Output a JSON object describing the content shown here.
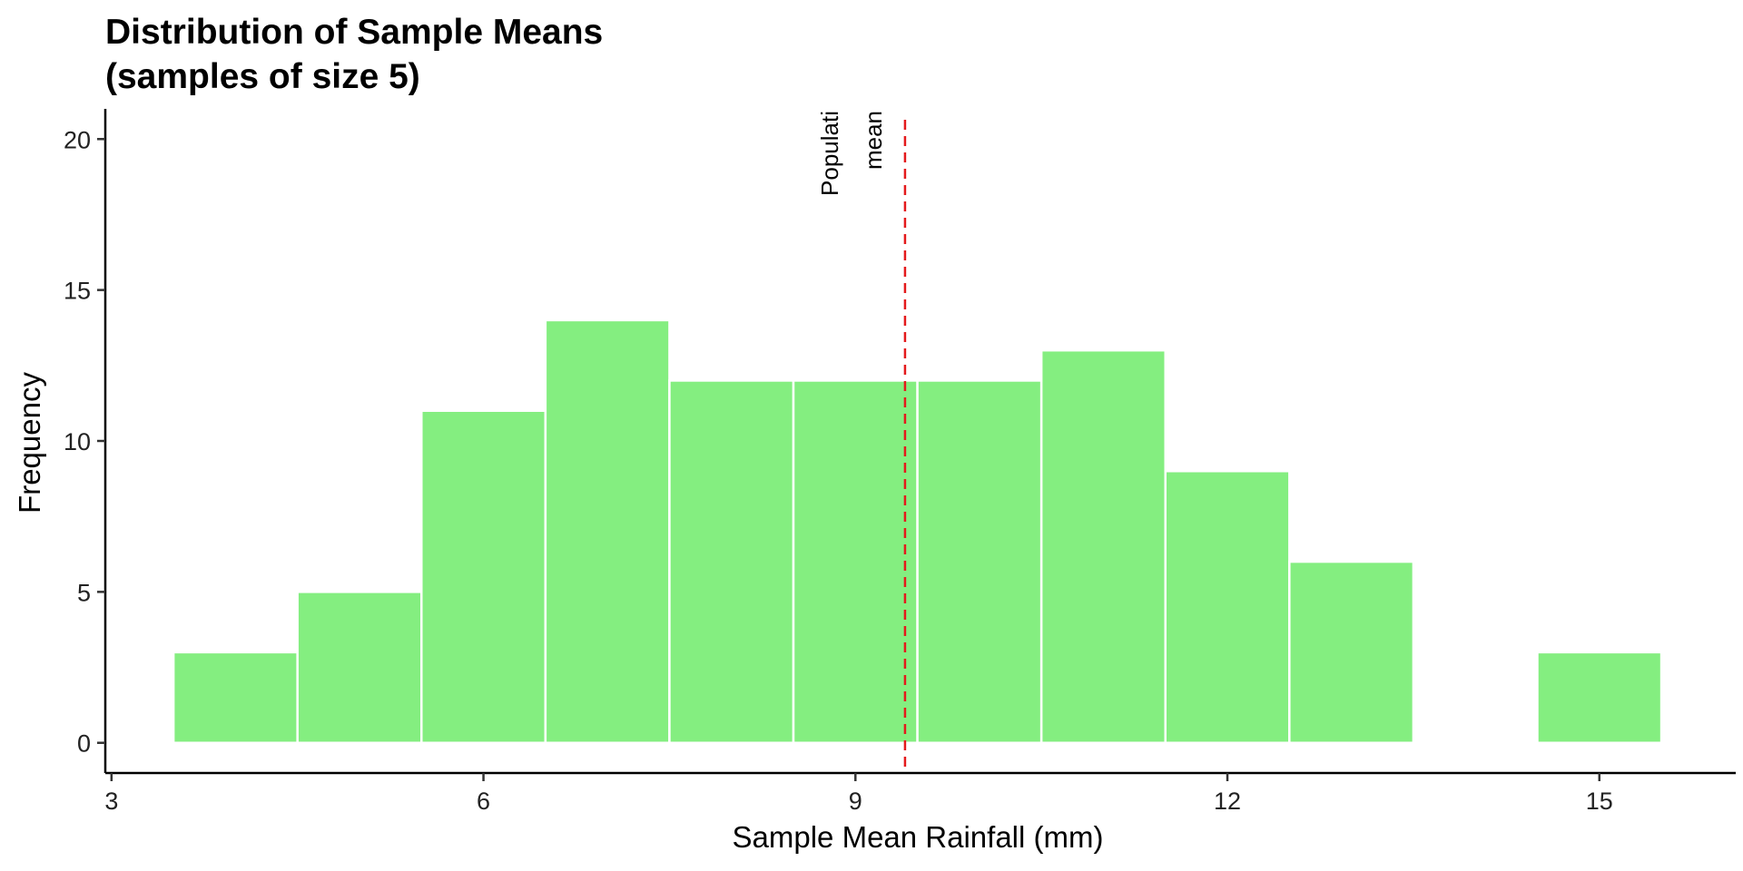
{
  "chart_data": {
    "type": "bar",
    "title_lines": [
      "Distribution of Sample Means",
      "(samples of size 5)"
    ],
    "xlabel": "Sample Mean Rainfall (mm)",
    "ylabel": "Frequency",
    "xlim": [
      2.95,
      16.1
    ],
    "ylim": [
      -1,
      21
    ],
    "x_ticks": [
      3,
      6,
      9,
      12,
      15
    ],
    "y_ticks": [
      0,
      5,
      10,
      15,
      20
    ],
    "bin_width": 1,
    "bars": [
      {
        "x": 4,
        "count": 3
      },
      {
        "x": 5,
        "count": 5
      },
      {
        "x": 6,
        "count": 11
      },
      {
        "x": 7,
        "count": 14
      },
      {
        "x": 8,
        "count": 12
      },
      {
        "x": 9,
        "count": 12
      },
      {
        "x": 10,
        "count": 12
      },
      {
        "x": 11,
        "count": 13
      },
      {
        "x": 12,
        "count": 9
      },
      {
        "x": 13,
        "count": 6
      },
      {
        "x": 14,
        "count": 0
      },
      {
        "x": 15,
        "count": 3
      }
    ],
    "reference_line": {
      "x": 9.4,
      "label_lines": [
        "Populati",
        "mean"
      ],
      "color": "#e41a1c",
      "style": "dashed"
    },
    "bar_fill": "#84ee80",
    "bar_stroke": "#ffffff",
    "grid": false,
    "legend": "none"
  }
}
